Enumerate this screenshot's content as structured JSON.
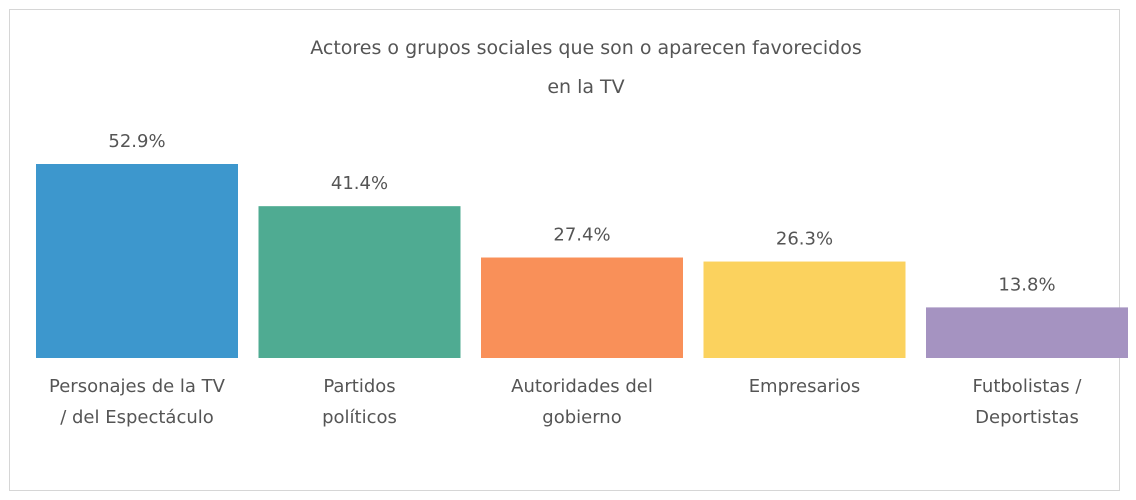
{
  "chart_data": {
    "type": "bar",
    "title_lines": [
      "Actores o grupos sociales que son o aparecen favorecidos",
      "en la TV"
    ],
    "categories": [
      [
        "Personajes de la TV",
        "/ del Espectáculo"
      ],
      [
        "Partidos",
        "políticos"
      ],
      [
        "Autoridades del",
        "gobierno"
      ],
      [
        "Empresarios"
      ],
      [
        "Futbolistas /",
        "Deportistas"
      ]
    ],
    "values": [
      52.9,
      41.4,
      27.4,
      26.3,
      13.8
    ],
    "value_labels": [
      "52.9%",
      "41.4%",
      "27.4%",
      "26.3%",
      "13.8%"
    ],
    "colors": [
      "#3d97cd",
      "#4fab92",
      "#f99059",
      "#fbd25e",
      "#a593c1"
    ],
    "ylim": [
      0,
      52.9
    ],
    "grid": false,
    "legend": "none"
  }
}
